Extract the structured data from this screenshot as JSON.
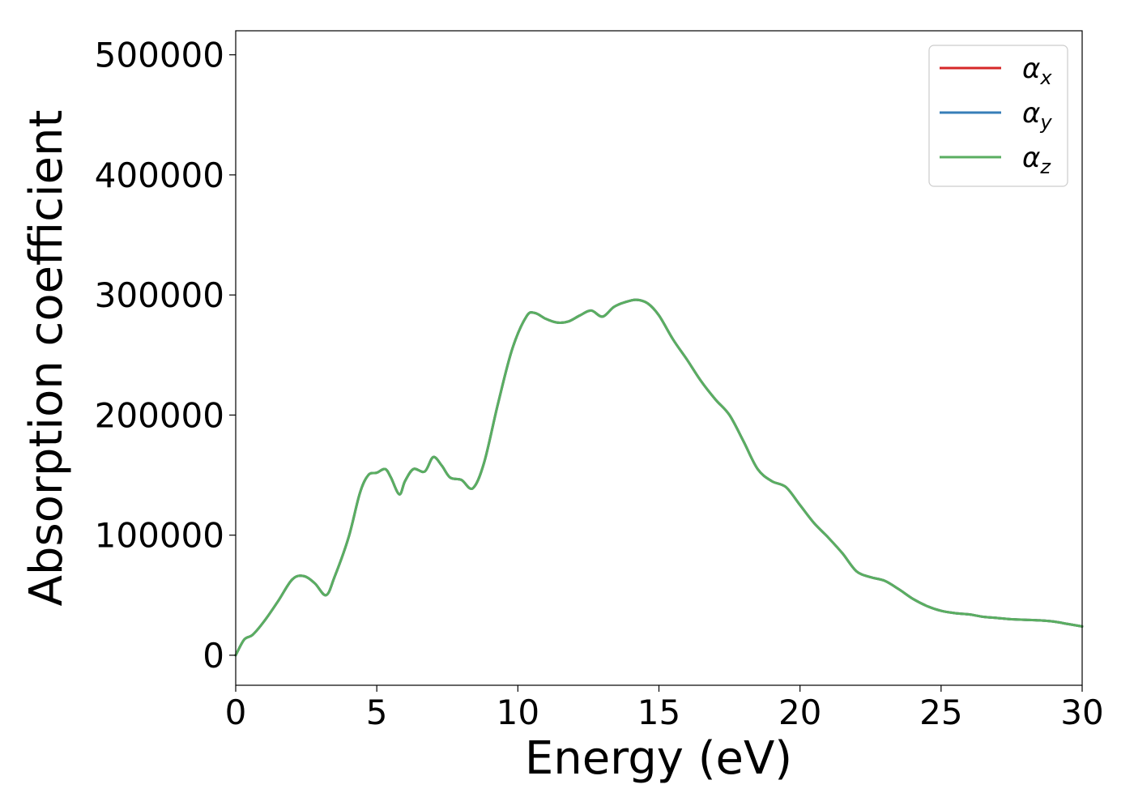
{
  "chart_data": {
    "type": "line",
    "title": "",
    "xlabel": "Energy (eV)",
    "ylabel": "Absorption coefficient",
    "xlim": [
      0,
      30
    ],
    "ylim": [
      -25000,
      520000
    ],
    "xticks": [
      0,
      5,
      10,
      15,
      20,
      25,
      30
    ],
    "xtick_labels": [
      "0",
      "5",
      "10",
      "15",
      "20",
      "25",
      "30"
    ],
    "yticks": [
      0,
      100000,
      200000,
      300000,
      400000,
      500000
    ],
    "ytick_labels": [
      "0",
      "100000",
      "200000",
      "300000",
      "400000",
      "500000"
    ],
    "grid": false,
    "legend_position": "top-right",
    "x": [
      0,
      0.3,
      0.6,
      1.0,
      1.5,
      2.0,
      2.4,
      2.8,
      3.2,
      3.5,
      4.0,
      4.4,
      4.7,
      5.0,
      5.3,
      5.5,
      5.8,
      6.0,
      6.3,
      6.7,
      7.0,
      7.3,
      7.6,
      8.0,
      8.4,
      8.8,
      9.3,
      9.8,
      10.3,
      10.6,
      11.0,
      11.4,
      11.8,
      12.2,
      12.6,
      13.0,
      13.4,
      13.8,
      14.2,
      14.6,
      15.0,
      15.5,
      16.0,
      16.5,
      17.0,
      17.5,
      18.0,
      18.5,
      19.0,
      19.5,
      20.0,
      20.5,
      21.0,
      21.5,
      22.0,
      22.5,
      23.0,
      23.5,
      24.0,
      24.5,
      25.0,
      25.5,
      26.0,
      26.5,
      27.0,
      27.5,
      28.0,
      28.5,
      29.0,
      29.5,
      30.0
    ],
    "series": [
      {
        "name": "αx",
        "label_base": "α",
        "label_sub": "x",
        "color": "#d62728",
        "values": [
          0,
          13000,
          17000,
          28000,
          45000,
          63000,
          66000,
          60000,
          50000,
          65000,
          98000,
          135000,
          150000,
          152000,
          155000,
          148000,
          134000,
          145000,
          155000,
          153000,
          165000,
          158000,
          148000,
          146000,
          139000,
          160000,
          210000,
          255000,
          282000,
          285000,
          280000,
          277000,
          278000,
          283000,
          287000,
          282000,
          290000,
          294000,
          296000,
          293000,
          283000,
          263000,
          246000,
          228000,
          213000,
          200000,
          178000,
          155000,
          145000,
          140000,
          125000,
          110000,
          98000,
          85000,
          70000,
          65000,
          62000,
          55000,
          47000,
          41000,
          37000,
          35000,
          34000,
          32000,
          31000,
          30000,
          29500,
          29000,
          28000,
          26000,
          24000
        ]
      },
      {
        "name": "αy",
        "label_base": "α",
        "label_sub": "y",
        "color": "#377eb8",
        "values": [
          0,
          13000,
          17000,
          28000,
          45000,
          63000,
          66000,
          60000,
          50000,
          65000,
          98000,
          135000,
          150000,
          152000,
          155000,
          148000,
          134000,
          145000,
          155000,
          153000,
          165000,
          158000,
          148000,
          146000,
          139000,
          160000,
          210000,
          255000,
          282000,
          285000,
          280000,
          277000,
          278000,
          283000,
          287000,
          282000,
          290000,
          294000,
          296000,
          293000,
          283000,
          263000,
          246000,
          228000,
          213000,
          200000,
          178000,
          155000,
          145000,
          140000,
          125000,
          110000,
          98000,
          85000,
          70000,
          65000,
          62000,
          55000,
          47000,
          41000,
          37000,
          35000,
          34000,
          32000,
          31000,
          30000,
          29500,
          29000,
          28000,
          26000,
          24000
        ]
      },
      {
        "name": "αz",
        "label_base": "α",
        "label_sub": "z",
        "color": "#5aae61",
        "values": [
          0,
          13000,
          17000,
          28000,
          45000,
          63000,
          66000,
          60000,
          50000,
          65000,
          98000,
          135000,
          150000,
          152000,
          155000,
          148000,
          134000,
          145000,
          155000,
          153000,
          165000,
          158000,
          148000,
          146000,
          139000,
          160000,
          210000,
          255000,
          282000,
          285000,
          280000,
          277000,
          278000,
          283000,
          287000,
          282000,
          290000,
          294000,
          296000,
          293000,
          283000,
          263000,
          246000,
          228000,
          213000,
          200000,
          178000,
          155000,
          145000,
          140000,
          125000,
          110000,
          98000,
          85000,
          70000,
          65000,
          62000,
          55000,
          47000,
          41000,
          37000,
          35000,
          34000,
          32000,
          31000,
          30000,
          29500,
          29000,
          28000,
          26000,
          24000
        ]
      }
    ]
  }
}
